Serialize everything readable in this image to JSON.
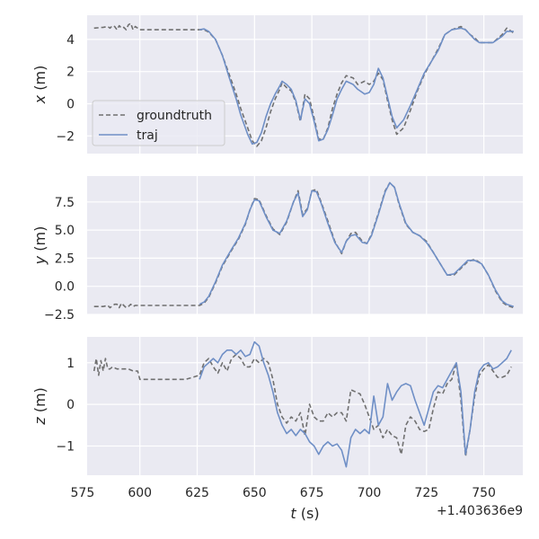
{
  "chart_data": {
    "type": "line",
    "xlabel": {
      "var": "t",
      "unit": "(s)"
    },
    "x_offset_label": "+1.403636e9",
    "xlim": [
      577,
      767
    ],
    "xticks": [
      575,
      600,
      625,
      650,
      675,
      700,
      725,
      750
    ],
    "grid": true,
    "legend": {
      "placement": "left",
      "entries": [
        "groundtruth",
        "traj"
      ]
    },
    "panels": [
      {
        "id": "x",
        "ylabel": {
          "var": "x",
          "unit": "(m)"
        },
        "ylim": [
          -3.1,
          5.5
        ],
        "yticks": [
          -2,
          0,
          2,
          4
        ],
        "series": [
          {
            "name": "groundtruth",
            "style": "dashed",
            "color": "#707070",
            "x": [
              580,
              584,
              586,
              587,
              588,
              589,
              590,
              591,
              592,
              593,
              594,
              595,
              596,
              597,
              598,
              599,
              600,
              602,
              610,
              620,
              626,
              628,
              630,
              633,
              636,
              639,
              642,
              644,
              647,
              649,
              651,
              653,
              655,
              657,
              659,
              661,
              662,
              664,
              666,
              668,
              670,
              672,
              674,
              676,
              678,
              680,
              682,
              684,
              686,
              688,
              690,
              693,
              695,
              698,
              700,
              702,
              704,
              706,
              708,
              710,
              712,
              715,
              718,
              721,
              724,
              727,
              730,
              733,
              736,
              740,
              742,
              744,
              746,
              748,
              750,
              754,
              758,
              760,
              763
            ],
            "y": [
              4.7,
              4.75,
              4.8,
              4.7,
              4.85,
              4.8,
              4.6,
              4.85,
              4.7,
              4.75,
              4.6,
              4.9,
              5.0,
              4.6,
              4.8,
              4.7,
              4.6,
              4.6,
              4.6,
              4.6,
              4.6,
              4.6,
              4.45,
              4.0,
              3.0,
              1.8,
              0.6,
              -0.3,
              -1.5,
              -2.3,
              -2.65,
              -2.3,
              -1.5,
              -0.5,
              0.3,
              0.9,
              1.3,
              1.0,
              0.8,
              0.1,
              -1.1,
              0.6,
              0.3,
              -0.9,
              -2.2,
              -2.2,
              -1.5,
              -0.3,
              0.6,
              1.3,
              1.75,
              1.6,
              1.2,
              1.4,
              1.2,
              1.4,
              1.9,
              1.5,
              0.2,
              -1.0,
              -1.9,
              -1.5,
              -0.4,
              0.8,
              1.8,
              2.6,
              3.4,
              4.3,
              4.6,
              4.8,
              4.6,
              4.3,
              4.1,
              3.8,
              3.8,
              3.8,
              4.3,
              4.7,
              4.4
            ]
          },
          {
            "name": "traj",
            "style": "solid",
            "color": "#6f8fc6",
            "x": [
              626,
              628,
              630,
              633,
              636,
              639,
              642,
              644,
              647,
              649,
              651,
              653,
              655,
              657,
              659,
              661,
              662,
              664,
              666,
              668,
              670,
              672,
              674,
              676,
              678,
              680,
              682,
              684,
              686,
              688,
              690,
              693,
              695,
              698,
              700,
              702,
              704,
              706,
              708,
              710,
              712,
              715,
              718,
              721,
              724,
              727,
              730,
              733,
              736,
              740,
              742,
              744,
              746,
              748,
              750,
              754,
              758,
              760,
              763
            ],
            "y": [
              4.6,
              4.65,
              4.5,
              4.0,
              3.0,
              1.6,
              0.3,
              -0.7,
              -1.9,
              -2.5,
              -2.4,
              -1.8,
              -0.8,
              0.0,
              0.6,
              1.1,
              1.4,
              1.2,
              0.9,
              0.2,
              -1.0,
              0.3,
              0.0,
              -1.1,
              -2.3,
              -2.2,
              -1.6,
              -0.7,
              0.3,
              0.9,
              1.4,
              1.2,
              0.9,
              0.6,
              0.7,
              1.2,
              2.2,
              1.6,
              0.4,
              -0.8,
              -1.5,
              -1.0,
              -0.1,
              0.9,
              1.9,
              2.6,
              3.3,
              4.3,
              4.6,
              4.7,
              4.6,
              4.3,
              4.0,
              3.8,
              3.8,
              3.8,
              4.2,
              4.5,
              4.5
            ]
          }
        ]
      },
      {
        "id": "y",
        "ylabel": {
          "var": "y",
          "unit": "(m)"
        },
        "ylim": [
          -2.5,
          9.8
        ],
        "yticks": [
          -2.5,
          0.0,
          2.5,
          5.0,
          7.5
        ],
        "series": [
          {
            "name": "groundtruth",
            "style": "dashed",
            "color": "#707070",
            "x": [
              580,
              584,
              586,
              587,
              589,
              590,
              591,
              592,
              593,
              594,
              595,
              596,
              597,
              598,
              600,
              610,
              620,
              626,
              628,
              630,
              633,
              636,
              640,
              643,
              646,
              648,
              650,
              652,
              655,
              658,
              661,
              664,
              667,
              669,
              671,
              673,
              675,
              677,
              679,
              682,
              685,
              688,
              690,
              692,
              694,
              697,
              699,
              701,
              704,
              707,
              709,
              711,
              713,
              716,
              719,
              722,
              725,
              728,
              731,
              734,
              737,
              740,
              743,
              746,
              749,
              752,
              755,
              758,
              760,
              763
            ],
            "y": [
              -1.8,
              -1.8,
              -1.7,
              -1.9,
              -1.6,
              -1.6,
              -1.9,
              -1.5,
              -1.7,
              -1.9,
              -1.8,
              -1.6,
              -1.8,
              -1.7,
              -1.7,
              -1.7,
              -1.7,
              -1.7,
              -1.5,
              -1.0,
              0.3,
              1.8,
              3.2,
              4.2,
              5.5,
              6.8,
              7.8,
              7.7,
              6.3,
              5.1,
              4.6,
              5.7,
              7.5,
              8.5,
              6.4,
              6.9,
              8.5,
              8.6,
              7.5,
              5.8,
              4.0,
              2.9,
              4.0,
              4.7,
              4.8,
              4.0,
              3.8,
              4.6,
              6.5,
              8.5,
              9.2,
              8.8,
              7.3,
              5.5,
              4.8,
              4.5,
              4.0,
              3.0,
              2.0,
              1.0,
              1.0,
              1.6,
              2.2,
              2.4,
              2.0,
              1.0,
              -0.4,
              -1.4,
              -1.7,
              -1.9
            ]
          },
          {
            "name": "traj",
            "style": "solid",
            "color": "#6f8fc6",
            "x": [
              626,
              628,
              630,
              633,
              636,
              640,
              643,
              646,
              648,
              650,
              652,
              655,
              658,
              661,
              664,
              667,
              669,
              671,
              673,
              675,
              677,
              679,
              682,
              685,
              688,
              690,
              692,
              694,
              697,
              699,
              701,
              704,
              707,
              709,
              711,
              713,
              716,
              719,
              722,
              725,
              728,
              731,
              734,
              737,
              740,
              743,
              746,
              749,
              752,
              755,
              758,
              760,
              763
            ],
            "y": [
              -1.6,
              -1.4,
              -0.9,
              0.4,
              1.9,
              3.3,
              4.3,
              5.6,
              6.8,
              7.7,
              7.6,
              6.2,
              5.0,
              4.7,
              5.8,
              7.5,
              8.3,
              6.2,
              6.8,
              8.5,
              8.4,
              7.4,
              5.6,
              3.9,
              3.0,
              4.0,
              4.5,
              4.6,
              3.9,
              3.8,
              4.5,
              6.4,
              8.4,
              9.2,
              8.8,
              7.4,
              5.6,
              4.8,
              4.5,
              3.9,
              3.0,
              2.0,
              1.0,
              1.1,
              1.7,
              2.3,
              2.3,
              2.0,
              1.0,
              -0.3,
              -1.3,
              -1.6,
              -1.8
            ]
          }
        ]
      },
      {
        "id": "z",
        "ylabel": {
          "var": "z",
          "unit": "(m)"
        },
        "ylim": [
          -1.7,
          1.62
        ],
        "yticks": [
          -1,
          0,
          1
        ],
        "series": [
          {
            "name": "groundtruth",
            "style": "dashed",
            "color": "#707070",
            "x": [
              580,
              581,
              582,
              583,
              584,
              585,
              586,
              587,
              588,
              590,
              592,
              595,
              597,
              599,
              600,
              602,
              610,
              620,
              626,
              628,
              630,
              632,
              634,
              636,
              638,
              640,
              642,
              644,
              646,
              648,
              650,
              652,
              654,
              656,
              658,
              660,
              662,
              664,
              666,
              668,
              670,
              672,
              674,
              676,
              678,
              680,
              682,
              684,
              686,
              688,
              690,
              692,
              694,
              696,
              698,
              700,
              702,
              704,
              706,
              708,
              710,
              712,
              714,
              716,
              718,
              720,
              722,
              724,
              726,
              728,
              730,
              732,
              734,
              736,
              738,
              740,
              742,
              744,
              746,
              748,
              750,
              752,
              754,
              756,
              758,
              760,
              762
            ],
            "y": [
              0.8,
              1.1,
              0.7,
              1.05,
              0.8,
              1.1,
              0.85,
              0.85,
              0.9,
              0.85,
              0.85,
              0.85,
              0.8,
              0.8,
              0.6,
              0.6,
              0.6,
              0.6,
              0.7,
              1.0,
              1.1,
              0.9,
              0.75,
              1.0,
              0.8,
              1.1,
              1.2,
              1.1,
              0.9,
              0.9,
              1.1,
              1.0,
              1.1,
              1.0,
              0.6,
              0.0,
              -0.3,
              -0.45,
              -0.3,
              -0.4,
              -0.2,
              -0.75,
              0.0,
              -0.3,
              -0.4,
              -0.4,
              -0.2,
              -0.3,
              -0.2,
              -0.2,
              -0.4,
              0.35,
              0.3,
              0.25,
              0.0,
              -0.3,
              -0.6,
              -0.5,
              -0.8,
              -0.6,
              -0.75,
              -0.8,
              -1.2,
              -0.5,
              -0.3,
              -0.4,
              -0.6,
              -0.65,
              -0.6,
              -0.1,
              0.3,
              0.25,
              0.5,
              0.6,
              1.0,
              0.1,
              -1.25,
              -0.6,
              0.2,
              0.7,
              0.85,
              0.95,
              0.8,
              0.65,
              0.65,
              0.7,
              0.9
            ]
          },
          {
            "name": "traj",
            "style": "solid",
            "color": "#6f8fc6",
            "x": [
              626,
              628,
              630,
              632,
              634,
              636,
              638,
              640,
              642,
              644,
              646,
              648,
              650,
              652,
              654,
              656,
              658,
              660,
              662,
              664,
              666,
              668,
              670,
              672,
              674,
              676,
              678,
              680,
              682,
              684,
              686,
              688,
              690,
              692,
              694,
              696,
              698,
              700,
              702,
              704,
              706,
              708,
              710,
              712,
              714,
              716,
              718,
              720,
              722,
              724,
              726,
              728,
              730,
              732,
              734,
              736,
              738,
              740,
              742,
              744,
              746,
              748,
              750,
              752,
              754,
              756,
              758,
              760,
              762
            ],
            "y": [
              0.6,
              0.9,
              1.0,
              1.1,
              1.0,
              1.2,
              1.3,
              1.3,
              1.2,
              1.3,
              1.15,
              1.2,
              1.5,
              1.4,
              1.0,
              0.7,
              0.3,
              -0.2,
              -0.5,
              -0.7,
              -0.6,
              -0.75,
              -0.6,
              -0.7,
              -0.9,
              -1.0,
              -1.2,
              -1.0,
              -0.9,
              -1.0,
              -0.95,
              -1.1,
              -1.5,
              -0.8,
              -0.6,
              -0.7,
              -0.6,
              -0.7,
              0.2,
              -0.5,
              -0.3,
              0.5,
              0.1,
              0.3,
              0.45,
              0.5,
              0.45,
              0.1,
              -0.2,
              -0.5,
              -0.1,
              0.3,
              0.45,
              0.4,
              0.6,
              0.8,
              1.0,
              0.3,
              -1.2,
              -0.6,
              0.3,
              0.8,
              0.95,
              1.0,
              0.85,
              0.9,
              1.0,
              1.1,
              1.3
            ]
          }
        ]
      }
    ]
  }
}
